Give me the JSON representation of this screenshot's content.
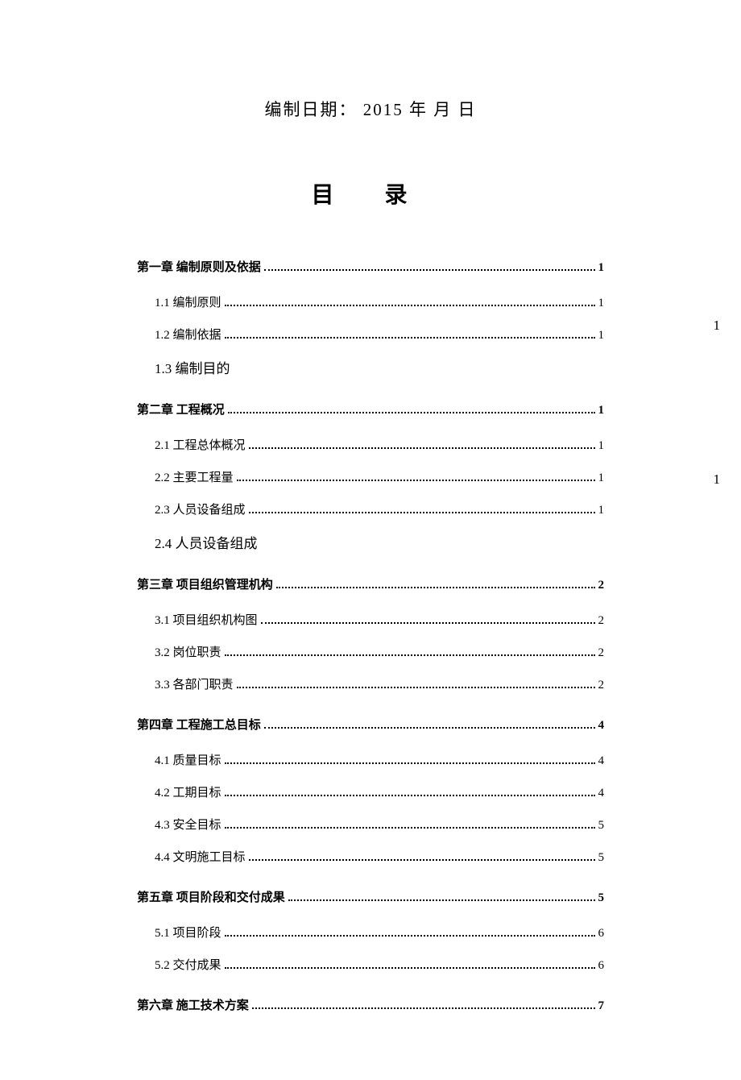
{
  "date_line": "编制日期：   2015 年 月 日",
  "toc_title": "目 录",
  "right_margin_1": "1",
  "right_margin_2": "1",
  "entries": [
    {
      "label": "第一章 编制原则及依据",
      "page": "1",
      "type": "chapter"
    },
    {
      "label": "1.1 编制原则",
      "page": "1",
      "type": "section"
    },
    {
      "label": "1.2 编制依据",
      "page": "1",
      "type": "section"
    },
    {
      "label": "1.3 编制目的",
      "page": "",
      "type": "nodots"
    },
    {
      "label": "第二章 工程概况",
      "page": "1",
      "type": "chapter"
    },
    {
      "label": "2.1 工程总体概况",
      "page": "1",
      "type": "section"
    },
    {
      "label": "2.2 主要工程量",
      "page": "1",
      "type": "section"
    },
    {
      "label": "2.3 人员设备组成",
      "page": "1",
      "type": "section"
    },
    {
      "label": "2.4 人员设备组成",
      "page": "",
      "type": "nodots"
    },
    {
      "label": "第三章 项目组织管理机构",
      "page": "2",
      "type": "chapter"
    },
    {
      "label": "3.1 项目组织机构图",
      "page": "2",
      "type": "section"
    },
    {
      "label": "3.2 岗位职责",
      "page": "2",
      "type": "section"
    },
    {
      "label": "3.3 各部门职责",
      "page": "2",
      "type": "section"
    },
    {
      "label": "第四章 工程施工总目标",
      "page": "4",
      "type": "chapter"
    },
    {
      "label": "4.1 质量目标",
      "page": "4",
      "type": "section"
    },
    {
      "label": "4.2 工期目标",
      "page": "4",
      "type": "section"
    },
    {
      "label": "4.3 安全目标",
      "page": "5",
      "type": "section"
    },
    {
      "label": "4.4 文明施工目标",
      "page": "5",
      "type": "section"
    },
    {
      "label": "第五章 项目阶段和交付成果",
      "page": "5",
      "type": "chapter"
    },
    {
      "label": "5.1 项目阶段",
      "page": "6",
      "type": "section"
    },
    {
      "label": "5.2 交付成果",
      "page": "6",
      "type": "section"
    },
    {
      "label": "第六章 施工技术方案",
      "page": "7",
      "type": "chapter"
    }
  ]
}
